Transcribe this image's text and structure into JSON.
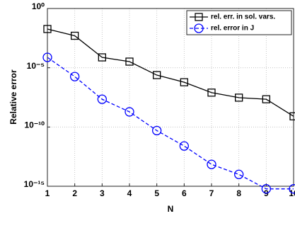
{
  "chart_data": {
    "type": "line",
    "x": [
      1,
      2,
      3,
      4,
      5,
      6,
      7,
      8,
      9,
      10
    ],
    "series": [
      {
        "name": "rel. err. in  sol. vars.",
        "color": "#000000",
        "marker": "square",
        "linestyle": "solid",
        "values": [
          0.0186,
          0.005,
          7.5e-05,
          3.3e-05,
          2.4e-06,
          6e-07,
          8e-08,
          3e-08,
          2.2e-08,
          8e-10
        ]
      },
      {
        "name": "rel. error in J",
        "color": "#0000ff",
        "marker": "circle",
        "linestyle": "dashed",
        "values": [
          7.5e-05,
          1.8e-06,
          2.2e-08,
          1.9e-09,
          5e-11,
          2.5e-12,
          7e-14,
          1e-14,
          6e-16,
          6e-16
        ]
      }
    ],
    "xlabel": "N",
    "ylabel": "Relative error",
    "xlim": [
      1,
      10
    ],
    "xticks": [
      1,
      2,
      3,
      4,
      5,
      6,
      7,
      8,
      9,
      10
    ],
    "ylim": [
      1e-15,
      1
    ],
    "ylog": true,
    "yticks": [
      {
        "value": 1e-15,
        "label": "10⁻¹⁵"
      },
      {
        "value": 1e-10,
        "label": "10⁻¹⁰"
      },
      {
        "value": 1e-05,
        "label": "10⁻⁵"
      },
      {
        "value": 1,
        "label": "10⁰"
      }
    ],
    "grid": true,
    "legend": "northeast"
  }
}
